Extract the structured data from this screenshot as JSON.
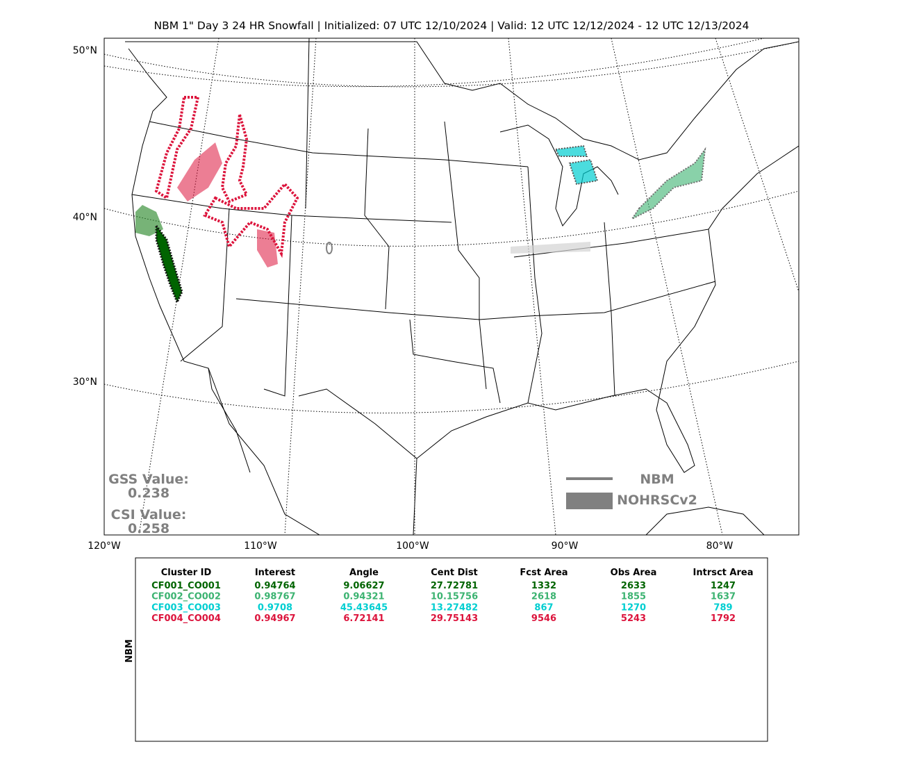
{
  "header": {
    "title": "NBM 1\" Day 3 24 HR Snowfall | Initialized: 07 UTC 12/10/2024 | Valid: 12 UTC 12/12/2024 - 12 UTC 12/13/2024"
  },
  "map": {
    "lat_labels": [
      "50°N",
      "40°N",
      "30°N"
    ],
    "lon_labels": [
      "120°W",
      "110°W",
      "100°W",
      "90°W",
      "80°W"
    ],
    "scores": {
      "gss_label": "GSS Value:",
      "gss_value": "0.238",
      "csi_label": "CSI Value:",
      "csi_value": "0.258"
    },
    "legend": {
      "line_label": "NBM",
      "fill_label": "NOHRSCv2"
    }
  },
  "table": {
    "side_label": "NBM",
    "columns": [
      "Cluster ID",
      "Interest",
      "Angle",
      "Cent Dist",
      "Fcst Area",
      "Obs Area",
      "Intrsct Area"
    ],
    "rows": [
      {
        "color": "#006400",
        "cells": [
          "CF001_CO001",
          "0.94764",
          "9.06627",
          "27.72781",
          "1332",
          "2633",
          "1247"
        ]
      },
      {
        "color": "#3cb371",
        "cells": [
          "CF002_CO002",
          "0.98767",
          "0.94321",
          "10.15756",
          "2618",
          "1855",
          "1637"
        ]
      },
      {
        "color": "#00ced1",
        "cells": [
          "CF003_CO003",
          "0.9708",
          "45.43645",
          "13.27482",
          "867",
          "1270",
          "789"
        ]
      },
      {
        "color": "#dc143c",
        "cells": [
          "CF004_CO004",
          "0.94967",
          "6.72141",
          "29.75143",
          "9546",
          "5243",
          "1792"
        ]
      }
    ]
  }
}
